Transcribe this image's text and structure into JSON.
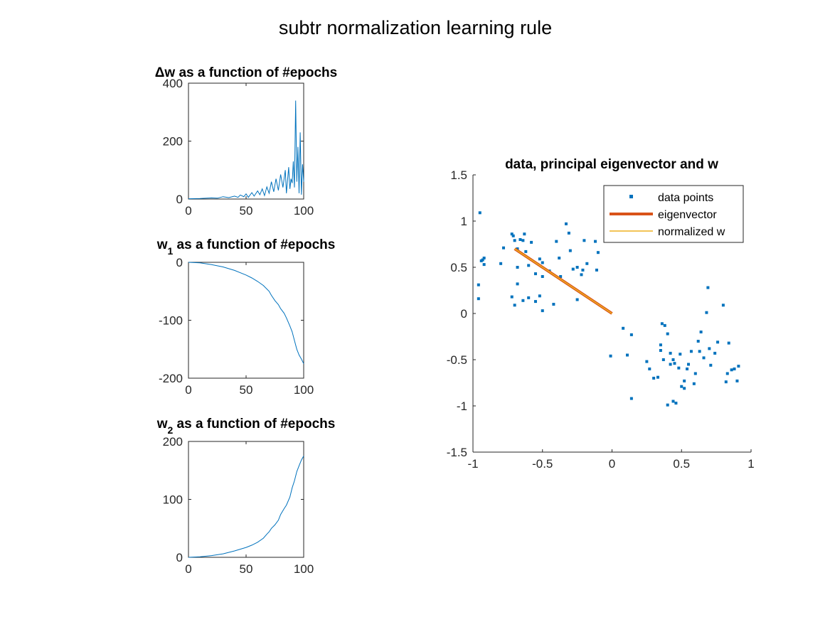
{
  "figure": {
    "title": "subtr normalization learning rule"
  },
  "colors": {
    "series_blue": "#0072BD",
    "eigen_orange": "#D95319",
    "w_yellow": "#EDB120"
  },
  "chart_data": [
    {
      "type": "line",
      "title": "Δw as a function of #epochs",
      "title_parts": {
        "prefix": "Δw",
        "subscript": "",
        "rest": " as a function of #epochs"
      },
      "xlim": [
        0,
        100
      ],
      "ylim": [
        0,
        400
      ],
      "xticks": [
        0,
        50,
        100
      ],
      "yticks": [
        0,
        200,
        400
      ],
      "series": [
        {
          "x": [
            0,
            10,
            20,
            25,
            30,
            35,
            40,
            43,
            45,
            48,
            50,
            52,
            55,
            57,
            60,
            62,
            64,
            66,
            68,
            70,
            72,
            74,
            76,
            78,
            80,
            82,
            84,
            85,
            87,
            88,
            89,
            90,
            91,
            92,
            93,
            94,
            95,
            96,
            97,
            98,
            99,
            100
          ],
          "values": [
            1,
            2,
            4,
            3,
            8,
            5,
            10,
            6,
            14,
            8,
            18,
            6,
            22,
            10,
            28,
            15,
            35,
            12,
            42,
            20,
            60,
            25,
            70,
            30,
            85,
            40,
            100,
            20,
            110,
            35,
            70,
            55,
            130,
            40,
            340,
            60,
            180,
            20,
            230,
            15,
            120,
            60
          ]
        }
      ]
    },
    {
      "type": "line",
      "title": "w1 as a function of #epochs",
      "title_parts": {
        "prefix": "w",
        "subscript": "1",
        "rest": " as a function of #epochs"
      },
      "xlim": [
        0,
        100
      ],
      "ylim": [
        -200,
        0
      ],
      "xticks": [
        0,
        50,
        100
      ],
      "yticks": [
        -200,
        -100,
        0
      ],
      "series": [
        {
          "x": [
            0,
            10,
            20,
            30,
            40,
            50,
            55,
            60,
            65,
            70,
            72,
            75,
            78,
            80,
            83,
            85,
            88,
            90,
            92,
            94,
            96,
            98,
            100
          ],
          "values": [
            0,
            -1,
            -4,
            -8,
            -14,
            -22,
            -27,
            -33,
            -40,
            -50,
            -57,
            -66,
            -73,
            -80,
            -88,
            -96,
            -110,
            -120,
            -135,
            -150,
            -160,
            -167,
            -175
          ]
        }
      ]
    },
    {
      "type": "line",
      "title": "w2 as a function of #epochs",
      "title_parts": {
        "prefix": "w",
        "subscript": "2",
        "rest": " as a function of #epochs"
      },
      "xlim": [
        0,
        100
      ],
      "ylim": [
        0,
        200
      ],
      "xticks": [
        0,
        50,
        100
      ],
      "yticks": [
        0,
        100,
        200
      ],
      "series": [
        {
          "x": [
            0,
            10,
            20,
            30,
            40,
            50,
            55,
            60,
            65,
            68,
            70,
            72,
            75,
            78,
            80,
            83,
            85,
            88,
            90,
            92,
            94,
            96,
            98,
            100
          ],
          "values": [
            0,
            1,
            3,
            6,
            11,
            17,
            21,
            26,
            33,
            40,
            44,
            50,
            56,
            64,
            74,
            84,
            90,
            104,
            120,
            132,
            148,
            158,
            168,
            175
          ]
        }
      ]
    },
    {
      "type": "scatter",
      "title": "data, principal eigenvector and w",
      "xlim": [
        -1,
        1
      ],
      "ylim": [
        -1.5,
        1.5
      ],
      "xticks": [
        -1,
        -0.5,
        0,
        0.5,
        1
      ],
      "yticks": [
        -1.5,
        -1,
        -0.5,
        0,
        0.5,
        1,
        1.5
      ],
      "legend": {
        "location": "top-right",
        "entries": [
          "data points",
          "eigenvector",
          "normalized w"
        ]
      },
      "series": [
        {
          "name": "data points",
          "points": [
            [
              -0.95,
              1.09
            ],
            [
              -0.93,
              0.58
            ],
            [
              -0.92,
              0.6
            ],
            [
              -0.94,
              0.57
            ],
            [
              -0.96,
              0.31
            ],
            [
              -0.96,
              0.16
            ],
            [
              -0.92,
              0.53
            ],
            [
              -0.8,
              0.54
            ],
            [
              -0.78,
              0.71
            ],
            [
              -0.72,
              0.86
            ],
            [
              -0.71,
              0.84
            ],
            [
              -0.7,
              0.79
            ],
            [
              -0.68,
              0.7
            ],
            [
              -0.66,
              0.8
            ],
            [
              -0.63,
              0.86
            ],
            [
              -0.64,
              0.79
            ],
            [
              -0.62,
              0.67
            ],
            [
              -0.6,
              0.52
            ],
            [
              -0.58,
              0.77
            ],
            [
              -0.55,
              0.43
            ],
            [
              -0.52,
              0.59
            ],
            [
              -0.5,
              0.4
            ],
            [
              -0.5,
              0.55
            ],
            [
              -0.72,
              0.18
            ],
            [
              -0.7,
              0.09
            ],
            [
              -0.68,
              0.32
            ],
            [
              -0.64,
              0.14
            ],
            [
              -0.6,
              0.17
            ],
            [
              -0.55,
              0.13
            ],
            [
              -0.52,
              0.19
            ],
            [
              -0.5,
              0.03
            ],
            [
              -0.45,
              0.46
            ],
            [
              -0.42,
              0.1
            ],
            [
              -0.4,
              0.78
            ],
            [
              -0.38,
              0.6
            ],
            [
              -0.37,
              0.4
            ],
            [
              -0.33,
              0.97
            ],
            [
              -0.31,
              0.87
            ],
            [
              -0.3,
              0.68
            ],
            [
              -0.28,
              0.48
            ],
            [
              -0.25,
              0.5
            ],
            [
              -0.22,
              0.42
            ],
            [
              -0.21,
              0.47
            ],
            [
              -0.2,
              0.79
            ],
            [
              -0.18,
              0.54
            ],
            [
              -0.11,
              0.47
            ],
            [
              -0.1,
              0.66
            ],
            [
              -0.25,
              0.15
            ],
            [
              -0.12,
              0.78
            ],
            [
              -0.68,
              0.5
            ],
            [
              -0.01,
              -0.46
            ],
            [
              0.08,
              -0.16
            ],
            [
              0.11,
              -0.45
            ],
            [
              0.14,
              -0.23
            ],
            [
              0.14,
              -0.92
            ],
            [
              0.25,
              -0.52
            ],
            [
              0.27,
              -0.6
            ],
            [
              0.3,
              -0.7
            ],
            [
              0.33,
              -0.69
            ],
            [
              0.35,
              -0.4
            ],
            [
              0.35,
              -0.34
            ],
            [
              0.36,
              -0.11
            ],
            [
              0.37,
              -0.5
            ],
            [
              0.38,
              -0.13
            ],
            [
              0.4,
              -0.99
            ],
            [
              0.4,
              -0.22
            ],
            [
              0.42,
              -0.43
            ],
            [
              0.42,
              -0.55
            ],
            [
              0.44,
              -0.5
            ],
            [
              0.44,
              -0.95
            ],
            [
              0.45,
              -0.54
            ],
            [
              0.46,
              -0.97
            ],
            [
              0.48,
              -0.59
            ],
            [
              0.49,
              -0.44
            ],
            [
              0.5,
              -0.79
            ],
            [
              0.52,
              -0.81
            ],
            [
              0.52,
              -0.73
            ],
            [
              0.54,
              -0.6
            ],
            [
              0.55,
              -0.55
            ],
            [
              0.57,
              -0.41
            ],
            [
              0.59,
              -0.76
            ],
            [
              0.6,
              -0.65
            ],
            [
              0.62,
              -0.3
            ],
            [
              0.63,
              -0.41
            ],
            [
              0.64,
              -0.2
            ],
            [
              0.66,
              -0.48
            ],
            [
              0.68,
              0.01
            ],
            [
              0.69,
              0.28
            ],
            [
              0.7,
              -0.38
            ],
            [
              0.71,
              -0.56
            ],
            [
              0.74,
              -0.43
            ],
            [
              0.76,
              -0.31
            ],
            [
              0.8,
              0.09
            ],
            [
              0.82,
              -0.74
            ],
            [
              0.83,
              -0.65
            ],
            [
              0.84,
              -0.32
            ],
            [
              0.86,
              -0.61
            ],
            [
              0.88,
              -0.6
            ],
            [
              0.9,
              -0.73
            ],
            [
              0.91,
              -0.57
            ]
          ]
        },
        {
          "name": "eigenvector",
          "points": [
            [
              0,
              0
            ],
            [
              -0.7,
              0.7
            ]
          ]
        },
        {
          "name": "normalized w",
          "points": [
            [
              0,
              0
            ],
            [
              -0.7,
              0.7
            ]
          ]
        }
      ]
    }
  ]
}
